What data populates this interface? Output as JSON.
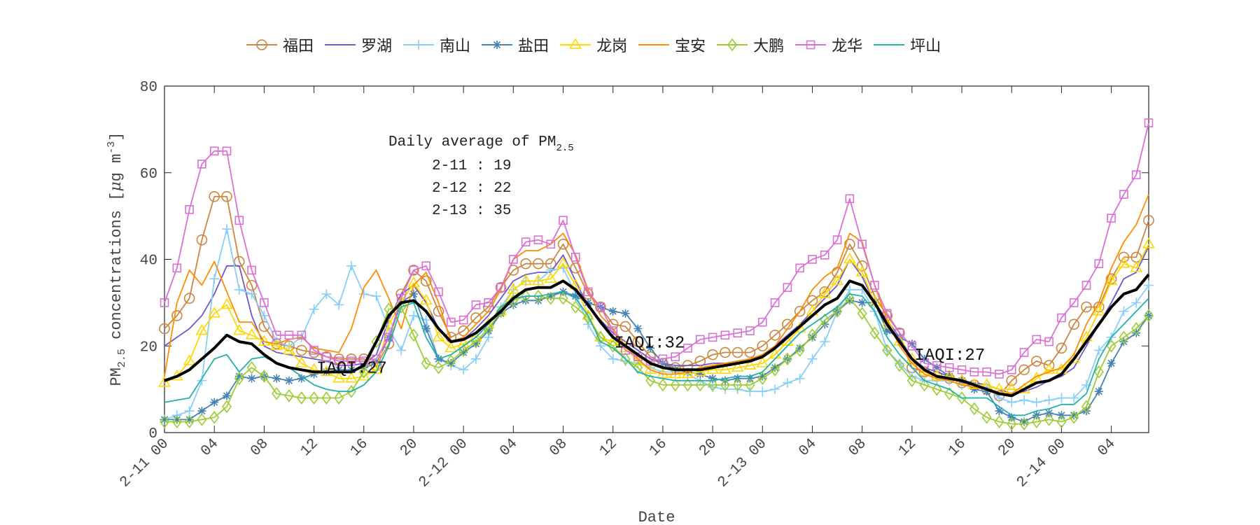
{
  "chart_data": {
    "type": "line",
    "xlabel": "Date",
    "ylabel": "PM2.5 concentrations [μg m-3]",
    "ylim": [
      0,
      80
    ],
    "yticks": [
      "0",
      "20",
      "40",
      "60",
      "80"
    ],
    "xticks": [
      "2-11 00",
      "04",
      "08",
      "12",
      "16",
      "20",
      "2-12 00",
      "04",
      "08",
      "12",
      "16",
      "20",
      "2-13 00",
      "04",
      "08",
      "12",
      "16",
      "20",
      "2-14 00",
      "04"
    ],
    "legend_position": "top",
    "annotation_box": {
      "title": "Daily average of PM",
      "title_sub": "2.5",
      "lines": [
        "2-11 : 19",
        "2-12 : 22",
        "2-13 : 35"
      ]
    },
    "annotations": [
      "IAQI:27",
      "IAQI:32",
      "IAQI:27"
    ],
    "series": [
      {
        "name": "福田",
        "color": "#cd853f",
        "marker": "circle",
        "values": [
          24,
          27,
          31,
          44.5,
          54.5,
          54.5,
          39.5,
          34,
          24.5,
          20.5,
          20,
          19,
          18.5,
          17.5,
          17,
          17,
          17,
          15.5,
          20.5,
          32,
          37.5,
          35,
          28,
          22,
          23.5,
          26.5,
          29,
          33.5,
          37.5,
          39,
          39,
          39,
          43.5,
          38,
          32,
          29,
          25,
          24.5,
          21,
          17.5,
          16,
          15,
          15.5,
          16.5,
          18,
          18.5,
          18.5,
          18.5,
          20,
          22.5,
          25,
          28,
          30.5,
          32.5,
          37,
          43.5,
          38.5,
          31.5,
          27,
          23,
          15,
          14,
          13,
          12.5,
          11.5,
          11,
          10,
          8.5,
          12,
          14.5,
          16.5,
          15.5,
          19.5,
          25,
          29,
          29,
          35.5,
          40.5,
          40.5,
          49
        ]
      },
      {
        "name": "罗湖",
        "color": "#6a5acd",
        "marker": "none",
        "values": [
          20,
          22,
          24,
          27,
          32,
          38.5,
          38.5,
          27,
          20,
          18.5,
          18,
          17.5,
          17,
          16.5,
          15.5,
          15.5,
          16,
          18,
          26,
          32,
          34,
          30,
          24,
          21,
          21.5,
          24,
          27,
          31,
          35,
          36.5,
          37,
          37,
          41,
          35,
          29,
          26,
          23,
          21,
          19,
          17,
          16,
          15.5,
          15.5,
          15.5,
          16,
          16,
          16.5,
          17,
          18,
          20,
          22.5,
          25,
          28,
          31,
          34,
          40,
          36,
          30,
          26,
          22,
          17,
          15,
          14,
          13,
          12,
          11.5,
          11,
          10,
          9,
          9.5,
          10.5,
          12,
          13,
          15,
          20,
          25,
          30,
          35.5,
          37,
          43
        ]
      },
      {
        "name": "南山",
        "color": "#87cefa",
        "marker": "plus",
        "values": [
          3,
          4,
          5,
          12,
          35.5,
          47,
          33,
          32,
          27,
          21,
          20,
          22,
          28.5,
          32,
          29.5,
          38.5,
          32,
          31.5,
          24,
          19,
          27,
          26,
          17,
          15.5,
          14.5,
          17,
          22,
          29,
          33,
          35,
          35,
          37.5,
          38,
          32,
          25,
          20,
          17,
          16.5,
          16,
          15,
          14,
          14,
          13.5,
          12,
          10.5,
          10,
          10,
          9.5,
          9.5,
          10,
          11.5,
          12.5,
          17,
          21,
          28,
          33,
          33,
          28,
          19,
          16,
          13,
          12,
          12,
          12,
          11,
          10.5,
          10.5,
          8,
          7,
          7.5,
          7,
          7.5,
          8,
          8,
          11,
          19,
          22,
          28,
          30,
          34
        ]
      },
      {
        "name": "盐田",
        "color": "#4682b4",
        "marker": "star",
        "values": [
          3,
          3,
          3,
          5,
          7,
          8.5,
          13,
          12.5,
          13,
          12.5,
          12,
          12.5,
          13.5,
          14,
          14.5,
          14.5,
          15,
          16,
          22,
          30,
          32,
          24,
          17,
          16,
          18.5,
          20.5,
          23.5,
          27.5,
          29.5,
          30.5,
          30.5,
          31.5,
          32.5,
          31.5,
          30,
          29,
          28,
          27.5,
          24,
          19.5,
          16,
          14.5,
          14,
          13.5,
          12.5,
          12,
          12.5,
          12.5,
          13,
          15,
          17,
          19.5,
          22,
          25,
          28,
          30.5,
          30,
          30,
          23.5,
          22,
          20.5,
          17,
          15,
          13,
          12,
          10,
          9.5,
          5,
          3.5,
          2.5,
          4,
          4.5,
          4,
          4,
          5,
          9.5,
          16,
          21,
          23,
          27
        ]
      },
      {
        "name": "龙岗",
        "color": "#ffd700",
        "marker": "triangle",
        "values": [
          11.5,
          13,
          16.5,
          23.5,
          27.5,
          29.5,
          23.5,
          22.5,
          21,
          20,
          19,
          16,
          14.5,
          14,
          12.5,
          12.5,
          13,
          14.5,
          25,
          30,
          34.5,
          30.5,
          22,
          19.5,
          20.5,
          22,
          25,
          28,
          33,
          35,
          35,
          35.5,
          39,
          34,
          27,
          22,
          21,
          19.5,
          16.5,
          14.5,
          13.5,
          13.5,
          13.5,
          14,
          14.5,
          14.5,
          15,
          15.5,
          16,
          18,
          21,
          24,
          28,
          32,
          35,
          40,
          37,
          30,
          25,
          21,
          17,
          14,
          13,
          13,
          12,
          11,
          11,
          10,
          10,
          10,
          12.5,
          14.5,
          14.5,
          17,
          22,
          28,
          35,
          39,
          38,
          43.5
        ]
      },
      {
        "name": "宝安",
        "color": "#ff8c00",
        "marker": "none",
        "values": [
          13,
          30,
          37.5,
          34,
          39.5,
          32.5,
          25.5,
          25.5,
          21,
          20.5,
          21.5,
          22,
          19.5,
          19,
          18.5,
          24,
          33.5,
          37.5,
          31,
          24,
          34,
          37,
          30,
          21,
          22,
          25,
          28,
          33,
          40,
          42,
          42,
          43.5,
          46,
          41,
          33,
          27,
          24,
          20,
          17,
          14.5,
          13.5,
          13.5,
          14,
          15,
          15.5,
          16,
          16.5,
          17,
          18,
          20,
          24,
          28,
          33,
          36,
          38,
          46,
          44,
          34,
          26,
          20,
          16,
          13.5,
          12.5,
          12,
          11,
          10.5,
          10,
          9,
          9,
          11,
          13,
          14,
          15,
          18,
          25,
          30,
          38,
          44,
          48,
          55
        ]
      },
      {
        "name": "大鹏",
        "color": "#9acd32",
        "marker": "diamond",
        "values": [
          2.5,
          2.5,
          2.5,
          3,
          3.5,
          6,
          12.5,
          15,
          13,
          9,
          8.5,
          8,
          8,
          8,
          8,
          9.5,
          14,
          21,
          28.5,
          29,
          22.5,
          16,
          15,
          16.5,
          19,
          21,
          24,
          28,
          30.5,
          31.5,
          31.5,
          31,
          31,
          29,
          26.5,
          22,
          20,
          17,
          15,
          12,
          11,
          11,
          11,
          11,
          11,
          11,
          11,
          11,
          12.5,
          14.5,
          17,
          19,
          22.5,
          26,
          28,
          31,
          27.5,
          23,
          19,
          15.5,
          12,
          11,
          10,
          9,
          8,
          5.5,
          3.5,
          2.5,
          2,
          2,
          2.5,
          3,
          2.5,
          3.5,
          6,
          14,
          20,
          22,
          24,
          27
        ]
      },
      {
        "name": "龙华",
        "color": "#da70d6",
        "marker": "square",
        "values": [
          30,
          38,
          51.5,
          62,
          65,
          65,
          49,
          37.5,
          30,
          22.5,
          22.5,
          22.5,
          19,
          17.5,
          16.5,
          16.5,
          16.5,
          17,
          22,
          31,
          37.5,
          38.5,
          32.5,
          25.5,
          26,
          29.5,
          30,
          33.5,
          40,
          44,
          44.5,
          43.5,
          49,
          40.5,
          32.5,
          29,
          23.5,
          19,
          17.5,
          16.5,
          17,
          17.5,
          19.5,
          21.5,
          22,
          22.5,
          23,
          23.5,
          25.5,
          30,
          33.5,
          38,
          40,
          41,
          44.5,
          54,
          43.5,
          34,
          27.5,
          23,
          20,
          16,
          15.5,
          15,
          14.5,
          14,
          14,
          13.5,
          14.5,
          18.5,
          21.5,
          21,
          26.5,
          30,
          34,
          39,
          49.5,
          55,
          59.5,
          71.5
        ]
      },
      {
        "name": "坪山",
        "color": "#20b2aa",
        "marker": "none",
        "values": [
          7,
          7.5,
          8,
          12.5,
          17,
          18,
          14,
          17,
          17.5,
          16,
          15,
          13,
          11,
          10,
          9.5,
          9.5,
          11,
          14,
          20,
          29,
          30,
          22,
          17,
          18,
          20,
          22,
          25,
          29,
          31,
          31.5,
          31.5,
          32,
          32.5,
          31,
          27,
          21,
          19.5,
          17,
          14,
          13,
          12.5,
          12,
          12,
          12,
          12,
          12.5,
          13,
          13,
          14,
          17,
          20,
          23,
          25,
          27,
          29,
          32,
          31.5,
          28,
          22,
          18,
          15,
          12,
          11,
          10,
          8,
          8,
          8,
          6,
          4,
          4,
          5,
          5.5,
          6.5,
          6.5,
          9,
          17,
          22,
          25,
          28,
          31
        ]
      },
      {
        "color": "#000000",
        "marker": "none",
        "thick": true,
        "values": [
          12,
          13,
          14.5,
          17,
          19.5,
          22.5,
          21,
          20.5,
          18,
          16,
          15,
          14.5,
          14,
          14,
          14,
          14,
          15.5,
          21,
          27,
          30,
          30.5,
          28,
          24,
          21,
          21.5,
          23,
          25.5,
          28,
          31,
          33,
          33.5,
          33.5,
          35,
          33,
          29.5,
          25.5,
          22,
          20,
          18,
          16,
          15,
          14.5,
          14.5,
          14.5,
          15,
          15.5,
          16,
          16.5,
          17.5,
          19.5,
          22,
          24.5,
          27,
          29.5,
          31,
          35,
          34,
          30,
          25,
          21,
          17,
          14.5,
          13,
          12.5,
          12,
          11,
          10,
          9,
          8.5,
          10,
          11.5,
          12,
          13.5,
          17,
          21,
          25,
          29,
          32,
          33,
          36.5
        ]
      }
    ]
  }
}
